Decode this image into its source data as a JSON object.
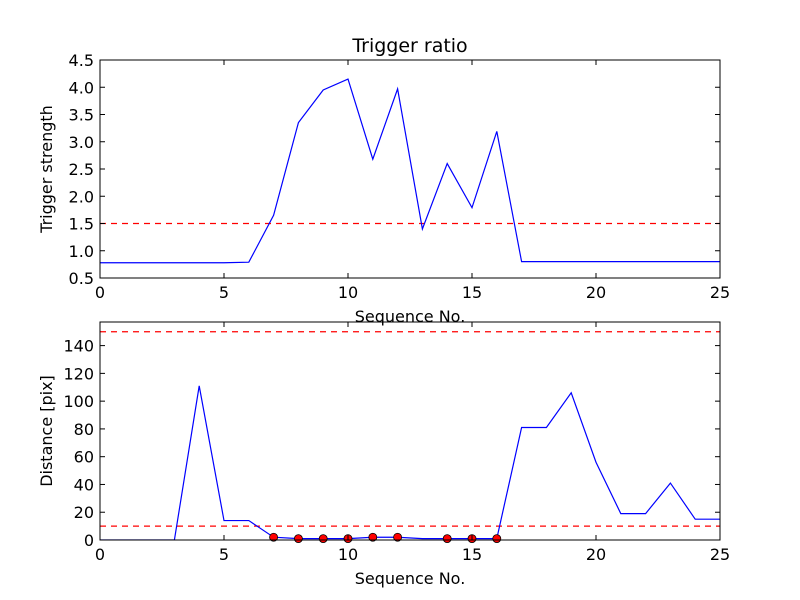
{
  "chart_data": [
    {
      "type": "line",
      "title": "Trigger ratio",
      "xlabel": "Sequence No.",
      "ylabel": "Trigger strength",
      "xlim": [
        0,
        25
      ],
      "ylim": [
        0.5,
        4.5
      ],
      "xticks": [
        0,
        5,
        10,
        15,
        20,
        25
      ],
      "yticks": [
        0.5,
        1.0,
        1.5,
        2.0,
        2.5,
        3.0,
        3.5,
        4.0,
        4.5
      ],
      "ytick_decimals": 1,
      "grid": false,
      "series": [
        {
          "color": "#0000ff",
          "x": [
            0,
            1,
            2,
            3,
            4,
            5,
            6,
            7,
            8,
            9,
            10,
            11,
            12,
            13,
            14,
            15,
            16,
            17,
            18,
            19,
            20,
            21,
            22,
            23,
            24,
            25
          ],
          "y": [
            0.78,
            0.78,
            0.78,
            0.78,
            0.78,
            0.78,
            0.79,
            1.65,
            3.35,
            3.95,
            4.15,
            2.68,
            3.97,
            1.4,
            2.6,
            1.79,
            3.19,
            0.8,
            0.8,
            0.8,
            0.8,
            0.8,
            0.8,
            0.8,
            0.8,
            0.8
          ]
        }
      ],
      "hlines": [
        {
          "y": 1.5,
          "color": "#ff0000",
          "style": "dashed"
        }
      ]
    },
    {
      "type": "line",
      "title": "",
      "xlabel": "Sequence No.",
      "ylabel": "Distance [pix]",
      "xlim": [
        0,
        25
      ],
      "ylim": [
        0,
        157
      ],
      "xticks": [
        0,
        5,
        10,
        15,
        20,
        25
      ],
      "yticks": [
        0,
        20,
        40,
        60,
        80,
        100,
        120,
        140
      ],
      "ytick_decimals": 0,
      "grid": false,
      "series": [
        {
          "color": "#0000ff",
          "x": [
            0,
            1,
            2,
            3,
            4,
            5,
            6,
            7,
            8,
            9,
            10,
            11,
            12,
            13,
            14,
            15,
            16,
            17,
            18,
            19,
            20,
            21,
            22,
            23,
            24,
            25
          ],
          "y": [
            0,
            0,
            0,
            0,
            111,
            14,
            14,
            2,
            1,
            1,
            1,
            2,
            2,
            1,
            1,
            1,
            1,
            81,
            81,
            106,
            56,
            19,
            19,
            41,
            15,
            15
          ]
        }
      ],
      "markers": {
        "color": "#ff0000",
        "x": [
          7,
          8,
          9,
          10,
          11,
          12,
          14,
          15,
          16
        ],
        "y": [
          2,
          1,
          1,
          1,
          2,
          2,
          1,
          1,
          1
        ]
      },
      "hlines": [
        {
          "y": 150,
          "color": "#ff0000",
          "style": "dashed"
        },
        {
          "y": 10,
          "color": "#ff0000",
          "style": "dashed"
        }
      ]
    }
  ]
}
